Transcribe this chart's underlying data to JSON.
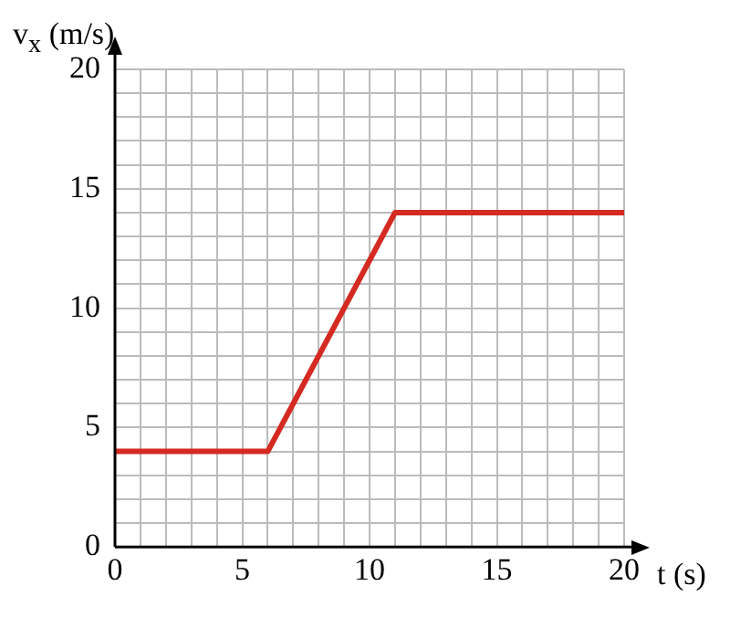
{
  "chart_data": {
    "type": "line",
    "xlabel": "t (s)",
    "ylabel": "v$_{x}$ (m/s)",
    "x": [
      0,
      6,
      11,
      20
    ],
    "series": [
      {
        "color": "#d42a22",
        "values": [
          4,
          4,
          14,
          14
        ]
      }
    ],
    "xlim": [
      0,
      20
    ],
    "ylim": [
      0,
      20
    ],
    "xticks": [
      0,
      {
        "value": 1,
        "label": null
      },
      {
        "value": 2,
        "label": null
      },
      {
        "value": 3,
        "label": null
      },
      {
        "value": 4,
        "label": null
      },
      5,
      {
        "value": 6,
        "label": null
      },
      {
        "value": 7,
        "label": null
      },
      {
        "value": 8,
        "label": null
      },
      {
        "value": 9,
        "label": null
      },
      10,
      {
        "value": 11,
        "label": null
      },
      {
        "value": 12,
        "label": null
      },
      {
        "value": 13,
        "label": null
      },
      {
        "value": 14,
        "label": null
      },
      15,
      {
        "value": 16,
        "label": null
      },
      {
        "value": 17,
        "label": null
      },
      {
        "value": 18,
        "label": null
      },
      {
        "value": 19,
        "label": null
      },
      20
    ],
    "yticks": [
      0,
      {
        "value": 1,
        "label": null
      },
      {
        "value": 2,
        "label": null
      },
      {
        "value": 3,
        "label": null
      },
      {
        "value": 4,
        "label": null
      },
      5,
      {
        "value": 6,
        "label": null
      },
      {
        "value": 7,
        "label": null
      },
      {
        "value": 8,
        "label": null
      },
      {
        "value": 9,
        "label": null
      },
      10,
      {
        "value": 11,
        "label": null
      },
      {
        "value": 12,
        "label": null
      },
      {
        "value": 13,
        "label": null
      },
      {
        "value": 14,
        "label": null
      },
      15,
      {
        "value": 16,
        "label": null
      },
      {
        "value": 17,
        "label": null
      },
      {
        "value": 18,
        "label": null
      },
      {
        "value": 19,
        "label": null
      },
      20
    ],
    "grid": true,
    "legend": false,
    "marker": "none",
    "line_style": "solid"
  }
}
